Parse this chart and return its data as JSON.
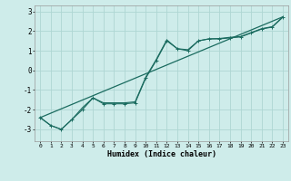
{
  "title": "",
  "xlabel": "Humidex (Indice chaleur)",
  "ylabel": "",
  "background_color": "#ceecea",
  "grid_color": "#aed6d3",
  "line_color": "#1a6b5f",
  "xlim": [
    -0.5,
    23.5
  ],
  "ylim": [
    -3.6,
    3.3
  ],
  "xticks": [
    0,
    1,
    2,
    3,
    4,
    5,
    6,
    7,
    8,
    9,
    10,
    11,
    12,
    13,
    14,
    15,
    16,
    17,
    18,
    19,
    20,
    21,
    22,
    23
  ],
  "yticks": [
    -3,
    -2,
    -1,
    0,
    1,
    2,
    3
  ],
  "line1_x": [
    0,
    1,
    2,
    3,
    4,
    5,
    6,
    7,
    8,
    9,
    10,
    11,
    12,
    13,
    14,
    15,
    16,
    17,
    18,
    19,
    20,
    21,
    22,
    23
  ],
  "line1_y": [
    -2.4,
    -2.8,
    -3.0,
    -2.5,
    -2.0,
    -1.4,
    -1.7,
    -1.7,
    -1.7,
    -1.65,
    -0.4,
    0.5,
    1.5,
    1.1,
    1.0,
    1.5,
    1.6,
    1.6,
    1.65,
    1.7,
    1.9,
    2.1,
    2.2,
    2.7
  ],
  "line2_x": [
    0,
    1,
    2,
    3,
    4,
    5,
    6,
    7,
    8,
    9,
    10,
    11,
    12,
    13,
    14,
    15,
    16,
    17,
    18,
    19,
    20,
    21,
    22,
    23
  ],
  "line2_y": [
    -2.4,
    -2.8,
    -3.0,
    -2.5,
    -1.9,
    -1.4,
    -1.65,
    -1.65,
    -1.65,
    -1.6,
    -0.35,
    0.55,
    1.55,
    1.1,
    1.05,
    1.5,
    1.6,
    1.62,
    1.68,
    1.72,
    1.92,
    2.12,
    2.22,
    2.72
  ],
  "line3_x": [
    0,
    23
  ],
  "line3_y": [
    -2.4,
    2.72
  ]
}
